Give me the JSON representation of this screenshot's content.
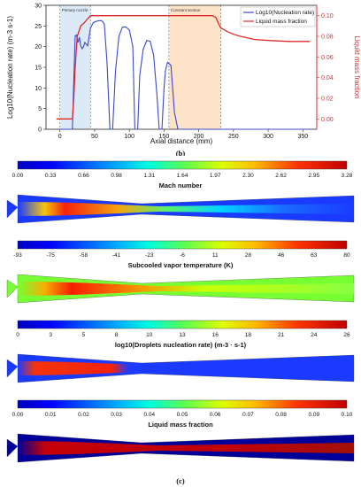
{
  "chart_data": {
    "type": "line",
    "xlabel": "Axial distance (mm)",
    "ylabel": "Log10(Nucleation rate) (m^-3 s^-1)",
    "y2label": "Liquid mass fraction",
    "xlim": [
      -20,
      370
    ],
    "ylim": [
      0,
      30
    ],
    "y2lim": [
      -0.01,
      0.11
    ],
    "x_ticks": [
      0,
      50,
      100,
      150,
      200,
      250,
      300,
      350
    ],
    "y_ticks": [
      0,
      5,
      10,
      15,
      20,
      25,
      30
    ],
    "y2_ticks": [
      "0.00",
      "0.02",
      "0.04",
      "0.06",
      "0.08",
      "0.10"
    ],
    "regions": [
      {
        "label": "Primary nozzle",
        "x0": 0,
        "x1": 44,
        "color": "#dce9f7"
      },
      {
        "label": "Constant section",
        "x0": 157,
        "x1": 232,
        "color": "#fde3c8"
      }
    ],
    "series": [
      {
        "name": "Log10(Nucleation rate)",
        "color": "#3b49c9",
        "axis": "left",
        "x": [
          0,
          18,
          20,
          22,
          24,
          26,
          28,
          30,
          32,
          34,
          36,
          38,
          40,
          44,
          48,
          52,
          56,
          60,
          64,
          68,
          72,
          74,
          76,
          80,
          85,
          90,
          95,
          100,
          105,
          108,
          110,
          112,
          115,
          120,
          125,
          130,
          135,
          140,
          143,
          145,
          147,
          150,
          152,
          155,
          160,
          165,
          170,
          172,
          180,
          200,
          250,
          360
        ],
        "y": [
          0,
          0,
          12,
          22.6,
          22.8,
          21,
          22.3,
          20.2,
          19.5,
          20,
          21,
          20.6,
          20.2,
          24.5,
          25.8,
          26.1,
          26.3,
          26.3,
          25.5,
          16,
          0,
          0,
          0,
          14,
          22.5,
          24.7,
          24.8,
          24,
          20,
          0,
          0,
          0,
          13,
          19.3,
          21.5,
          21.3,
          18,
          8,
          0,
          0,
          0,
          10,
          14.2,
          16.2,
          15.5,
          4,
          0,
          0,
          0,
          0,
          0,
          0
        ]
      },
      {
        "name": "Liquid mass fraction",
        "color": "#e02a2a",
        "axis": "right",
        "x": [
          -5,
          0,
          18,
          20,
          22,
          25,
          30,
          35,
          40,
          44,
          50,
          100,
          150,
          200,
          220,
          225,
          228,
          232,
          235,
          240,
          250,
          260,
          280,
          300,
          330,
          360
        ],
        "y": [
          0,
          0,
          0,
          0.02,
          0.05,
          0.08,
          0.09,
          0.093,
          0.097,
          0.1,
          0.1,
          0.1,
          0.1,
          0.1,
          0.1,
          0.098,
          0.093,
          0.088,
          0.087,
          0.085,
          0.082,
          0.08,
          0.077,
          0.076,
          0.075,
          0.075
        ]
      }
    ]
  },
  "labels": {
    "panel_b": "(b)",
    "panel_c": "(c)",
    "x_axis": "Axial distance (mm)",
    "y_axis_left": "Log10(Nucleation rate) (m-3 s-1)",
    "y_axis_right": "Liquid mass fraction",
    "legend_nucleation": "Log10(Nucleation rate)",
    "legend_nucleation_unit": "(m-3 s-1)",
    "legend_liquid": "Liquid mass fraction",
    "region_primary": "Primary nozzle",
    "region_constant": "Constant section"
  },
  "contours": [
    {
      "title": "Mach number",
      "ticks": [
        "0.00",
        "0.33",
        "0.66",
        "0.98",
        "1.31",
        "1.64",
        "1.97",
        "2.30",
        "2.62",
        "2.95",
        "3.28"
      ]
    },
    {
      "title": "Subcooled vapor temperature (K)",
      "ticks": [
        "-93",
        "-75",
        "-58",
        "-41",
        "-23",
        "-6",
        "11",
        "28",
        "46",
        "63",
        "80"
      ]
    },
    {
      "title": "log10(Droplets nucleation rate)  (m-3 · s-1)",
      "ticks": [
        "0",
        "3",
        "5",
        "8",
        "10",
        "13",
        "16",
        "18",
        "21",
        "24",
        "26"
      ]
    },
    {
      "title": "Liquid mass fraction",
      "ticks": [
        "0.00",
        "0.01",
        "0.02",
        "0.03",
        "0.04",
        "0.05",
        "0.06",
        "0.07",
        "0.08",
        "0.09",
        "0.10"
      ]
    }
  ],
  "colors": {
    "jet": [
      "#00007f",
      "#0000ff",
      "#0080ff",
      "#00ffff",
      "#80ff80",
      "#ffff00",
      "#ff8000",
      "#ff0000",
      "#7f0000"
    ],
    "nucleation": "#3b49c9",
    "liquid": "#e02a2a"
  }
}
